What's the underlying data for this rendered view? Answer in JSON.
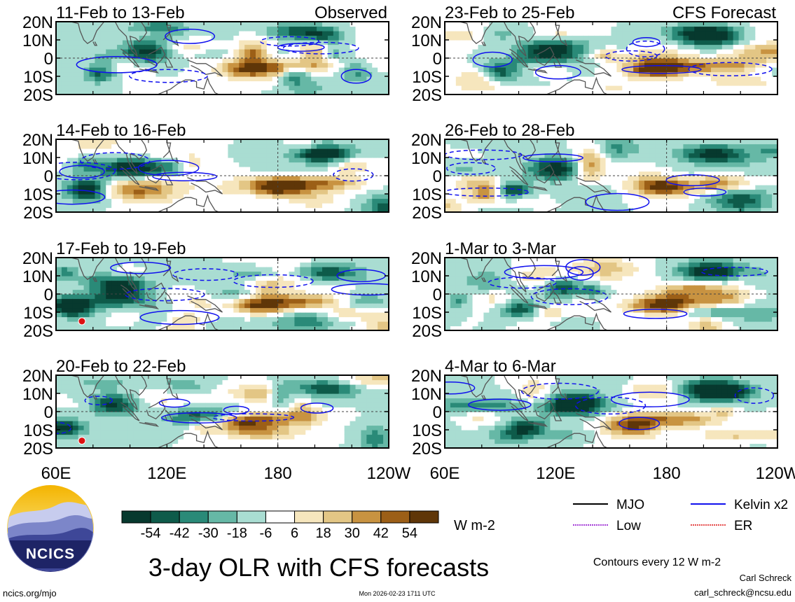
{
  "figure": {
    "title": "3-day OLR with CFS forecasts",
    "logo_text": "NCICS",
    "website": "ncics.org/mjo",
    "timestamp": "Mon 2026-02-23 1711 UTC",
    "author": "Carl Schreck",
    "email": "carl_schreck@ncsu.edu",
    "contour_note": "Contours every 12 W m-2"
  },
  "colors": {
    "palette": [
      "#07392e",
      "#0e5b4a",
      "#2a8a78",
      "#66b8a6",
      "#a9ddd2",
      "#ffffff",
      "#f6e6bd",
      "#e3c685",
      "#c89341",
      "#9c5f17",
      "#5f3608"
    ],
    "mjo": "#000000",
    "kelvin": "#1010ee",
    "low": "#8800cc",
    "er": "#dd1111",
    "coast": "#555555",
    "ref_line": "#444444"
  },
  "chart_data": {
    "type": "heatmap",
    "field": "3-day OLR anomaly",
    "units": "W m-2",
    "colorbar": {
      "bounds": [
        -60,
        -48,
        -36,
        -24,
        -12,
        0,
        12,
        24,
        36,
        48,
        60
      ],
      "tick_labels": [
        "-54",
        "-42",
        "-30",
        "-18",
        "-6",
        "6",
        "18",
        "30",
        "42",
        "54"
      ]
    },
    "x_ticks": [
      "60E",
      "120E",
      "180",
      "120W"
    ],
    "x_range_deg": [
      60,
      240
    ],
    "y_ticks": [
      "20N",
      "10N",
      "0",
      "10S",
      "20S"
    ],
    "y_range_deg": [
      -20,
      20
    ],
    "labels": {
      "observed": "Observed",
      "forecast": "CFS Forecast"
    },
    "panels": [
      {
        "title": "11-Feb to 13-Feb",
        "kind": "observed",
        "seed": 11,
        "warm_lon": 165,
        "wet_lon": 110,
        "amp": 1.0
      },
      {
        "title": "14-Feb to 16-Feb",
        "kind": "observed",
        "seed": 14,
        "warm_lon": 180,
        "wet_lon": 100,
        "amp": 1.1
      },
      {
        "title": "17-Feb to 19-Feb",
        "kind": "observed",
        "seed": 17,
        "warm_lon": 170,
        "wet_lon": 95,
        "amp": 1.1
      },
      {
        "title": "20-Feb to 22-Feb",
        "kind": "observed",
        "seed": 20,
        "warm_lon": 160,
        "wet_lon": 90,
        "amp": 0.9
      },
      {
        "title": "23-Feb to 25-Feb",
        "kind": "forecast",
        "seed": 23,
        "warm_lon": 175,
        "wet_lon": 115,
        "amp": 1.0
      },
      {
        "title": "26-Feb to 28-Feb",
        "kind": "forecast",
        "seed": 26,
        "warm_lon": 180,
        "wet_lon": 120,
        "amp": 1.0
      },
      {
        "title": "1-Mar to 3-Mar",
        "kind": "forecast",
        "seed": 31,
        "warm_lon": 175,
        "wet_lon": 125,
        "amp": 1.0
      },
      {
        "title": "4-Mar to 6-Mar",
        "kind": "forecast",
        "seed": 34,
        "warm_lon": 165,
        "wet_lon": 130,
        "amp": 1.0
      }
    ],
    "storm_markers": [
      {
        "panel": 2,
        "lon": 74,
        "lat": -15
      },
      {
        "panel": 3,
        "lon": 74,
        "lat": -16
      }
    ],
    "legend": [
      {
        "label": "MJO",
        "style": "solid",
        "color_key": "mjo"
      },
      {
        "label": "Kelvin x2",
        "style": "solid",
        "color_key": "kelvin"
      },
      {
        "label": "Low",
        "style": "dotted",
        "color_key": "low"
      },
      {
        "label": "ER",
        "style": "dotted",
        "color_key": "er"
      }
    ]
  }
}
